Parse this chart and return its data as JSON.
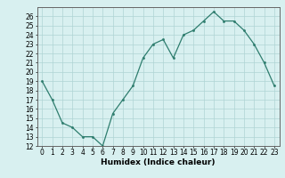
{
  "x": [
    0,
    1,
    2,
    3,
    4,
    5,
    6,
    7,
    8,
    9,
    10,
    11,
    12,
    13,
    14,
    15,
    16,
    17,
    18,
    19,
    20,
    21,
    22,
    23
  ],
  "y": [
    19,
    17,
    14.5,
    14,
    13,
    13,
    12,
    15.5,
    17,
    18.5,
    21.5,
    23,
    23.5,
    21.5,
    24,
    24.5,
    25.5,
    26.5,
    25.5,
    25.5,
    24.5,
    23,
    21,
    18.5
  ],
  "xlabel": "Humidex (Indice chaleur)",
  "ylim": [
    12,
    27
  ],
  "xlim": [
    -0.5,
    23.5
  ],
  "yticks": [
    12,
    13,
    14,
    15,
    16,
    17,
    18,
    19,
    20,
    21,
    22,
    23,
    24,
    25,
    26
  ],
  "xticks": [
    0,
    1,
    2,
    3,
    4,
    5,
    6,
    7,
    8,
    9,
    10,
    11,
    12,
    13,
    14,
    15,
    16,
    17,
    18,
    19,
    20,
    21,
    22,
    23
  ],
  "line_color": "#2e7d6e",
  "marker_color": "#2e7d6e",
  "bg_color": "#d8f0f0",
  "grid_color": "#afd4d4",
  "label_fontsize": 6.5,
  "tick_fontsize": 5.5
}
